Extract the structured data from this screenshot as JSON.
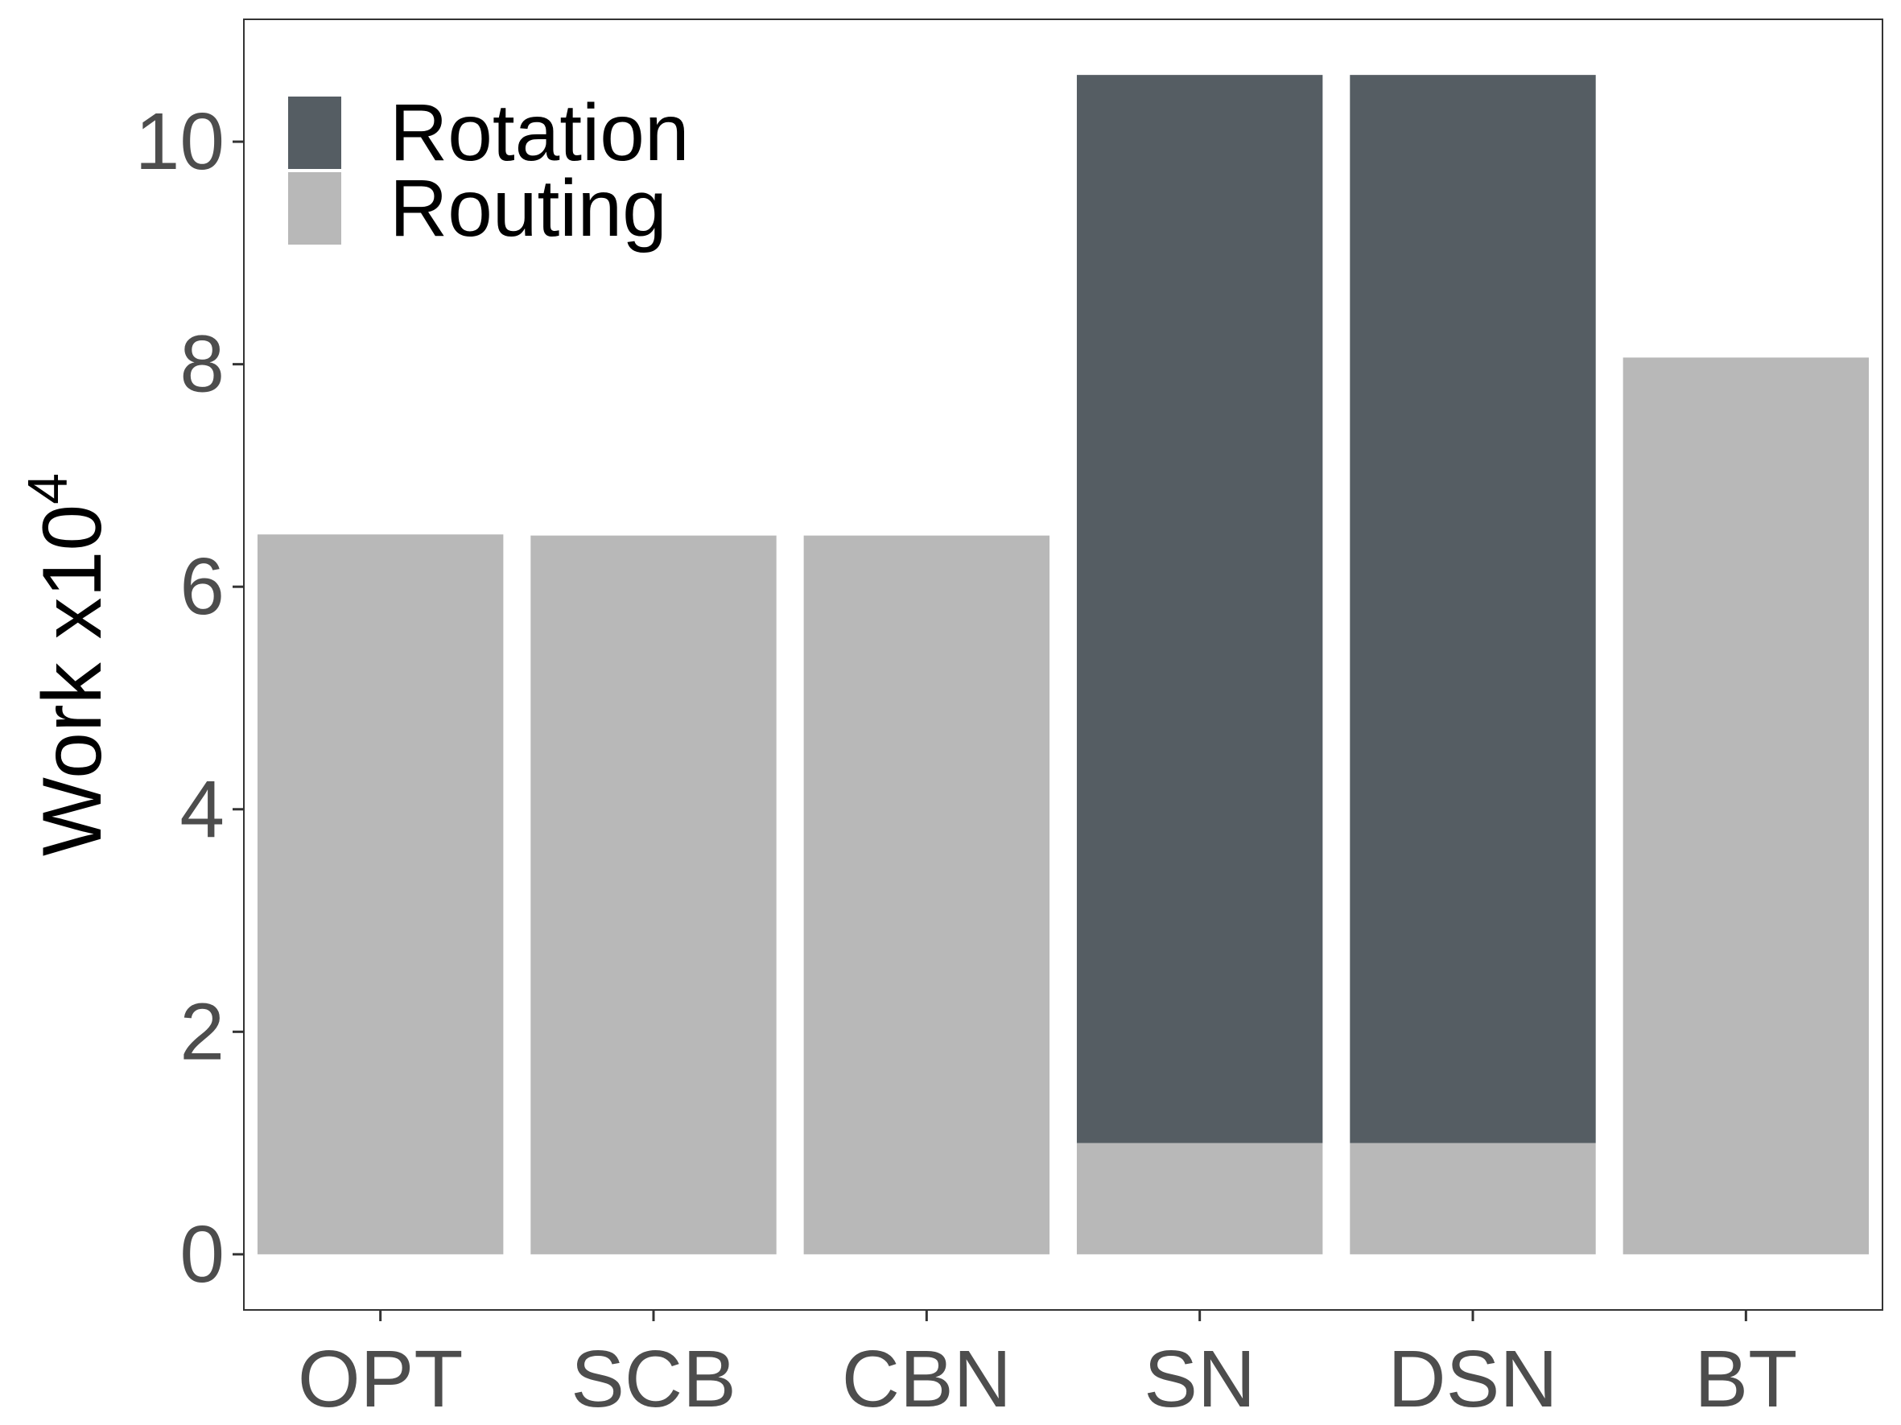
{
  "chart_data": {
    "type": "bar",
    "stacked": true,
    "categories": [
      "OPT",
      "SCB",
      "CBN",
      "SN",
      "DSN",
      "BT"
    ],
    "series": [
      {
        "name": "Routing",
        "color": "#b8b8b8",
        "values": [
          6.47,
          6.46,
          6.46,
          1.0,
          1.0,
          8.06
        ]
      },
      {
        "name": "Rotation",
        "color": "#555d63",
        "values": [
          0,
          0,
          0,
          9.6,
          9.6,
          0
        ]
      }
    ],
    "ylabel": "Work x10",
    "ylabel_superscript": "4",
    "yticks": [
      "0",
      "2",
      "4",
      "6",
      "8",
      "10"
    ],
    "ylim": [
      -0.5,
      11.1
    ],
    "legend_position": "top-left",
    "legend_order": [
      "Rotation",
      "Routing"
    ],
    "grid": false
  }
}
